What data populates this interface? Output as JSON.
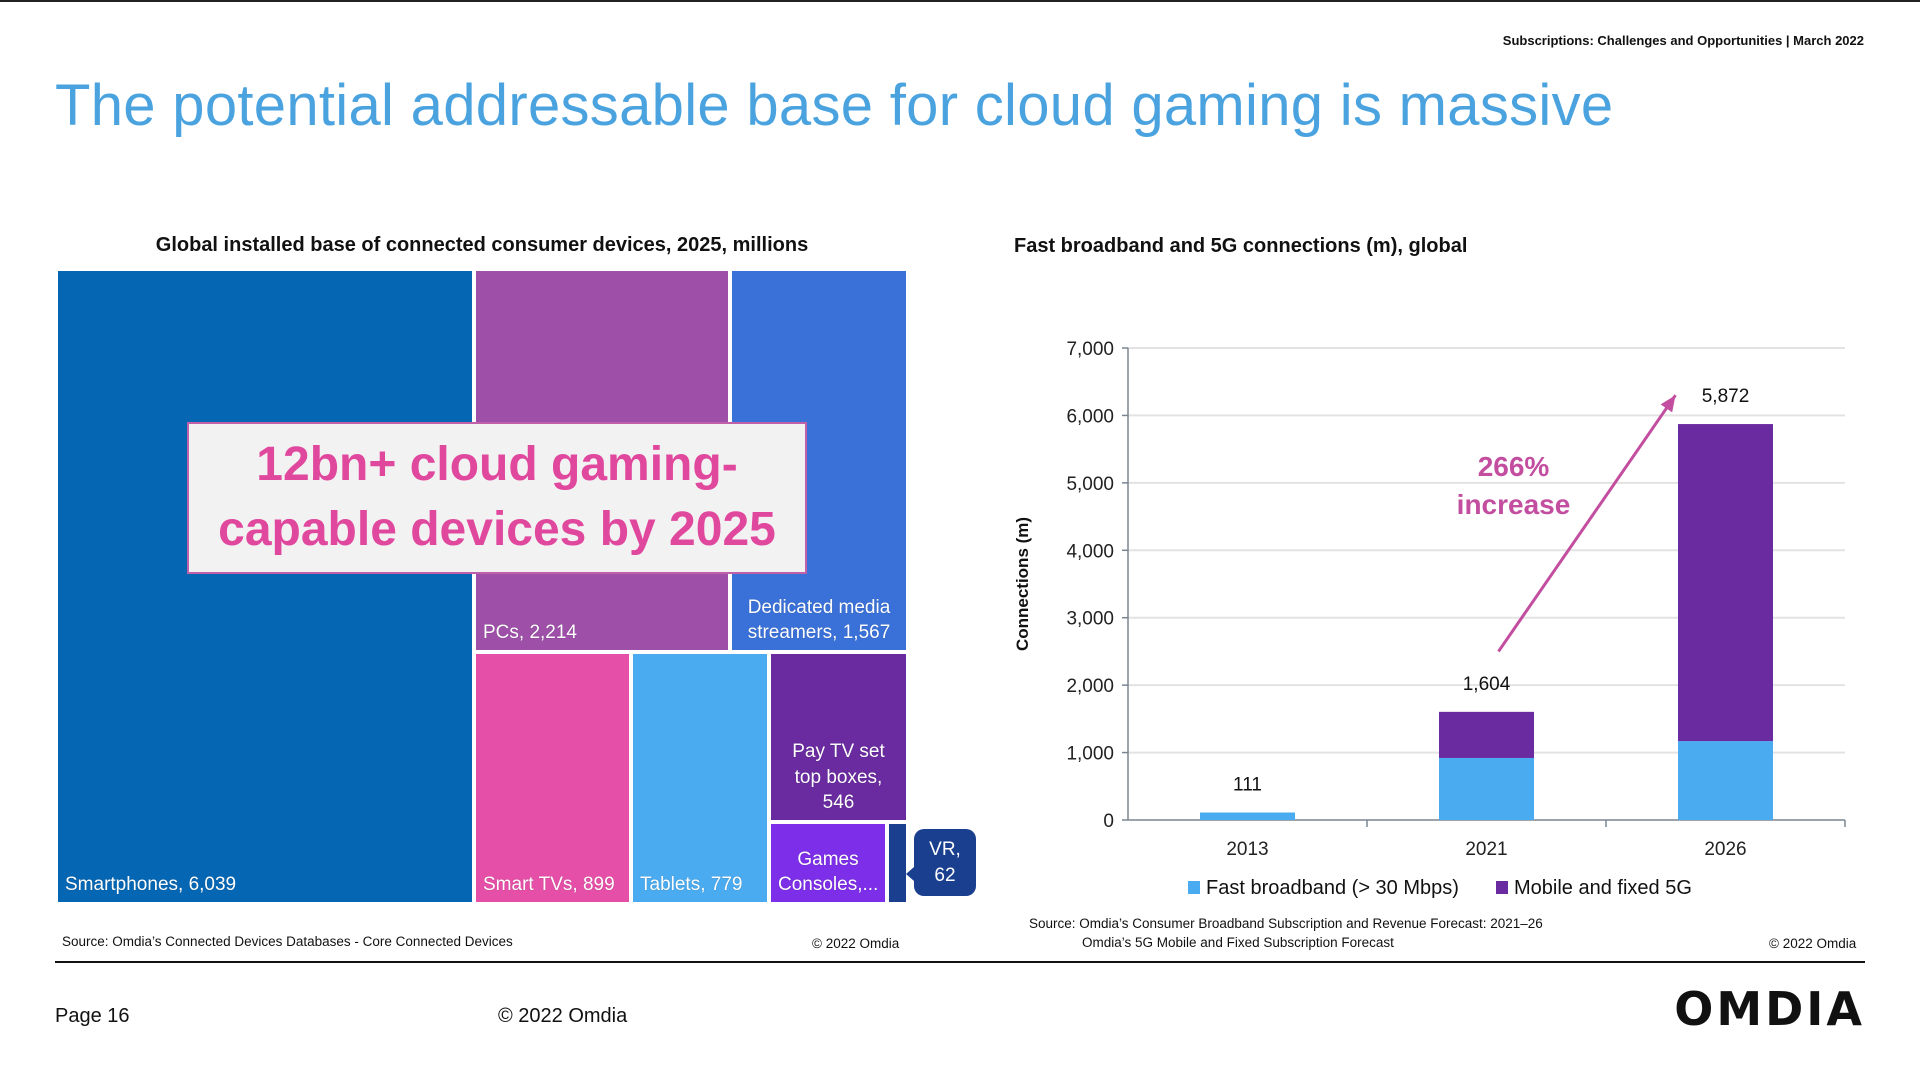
{
  "header": {
    "report": "Subscriptions: Challenges and Opportunities | March 2022",
    "title": "The potential addressable base for cloud gaming is massive"
  },
  "footer": {
    "page": "Page 16",
    "copyright": "© 2022 Omdia",
    "logo": "OMDIA"
  },
  "highlight": {
    "line1": "12bn+ cloud gaming-",
    "line2": "capable devices by 2025"
  },
  "colors": {
    "title": "#4aa3df",
    "smartphones": "#0567b4",
    "pcs": "#9e4fa8",
    "streamers": "#3a71d8",
    "smart_tvs": "#e64fa7",
    "tablets": "#4aabf0",
    "pay_tv": "#6a2aa0",
    "consoles": "#7d2ee8",
    "vr": "#1a3f8f",
    "fast_broadband": "#4aabf0",
    "mobile_5g": "#6a2aa0",
    "annotation": "#c34ea0"
  },
  "chart_data": [
    {
      "type": "treemap",
      "title": "Global installed base of connected consumer devices, 2025, millions",
      "items": [
        {
          "name": "Smartphones",
          "value": 6039,
          "label": "Smartphones,  6,039"
        },
        {
          "name": "PCs",
          "value": 2214,
          "label": "PCs,  2,214"
        },
        {
          "name": "Dedicated media streamers",
          "value": 1567,
          "label": "Dedicated media streamers,  1,567"
        },
        {
          "name": "Smart TVs",
          "value": 899,
          "label": "Smart TVs,  899"
        },
        {
          "name": "Tablets",
          "value": 779,
          "label": "Tablets,  779"
        },
        {
          "name": "Pay TV set top boxes",
          "value": 546,
          "label": "Pay TV set top boxes,  546"
        },
        {
          "name": "Games Consoles",
          "value": null,
          "label": "Games Consoles,..."
        },
        {
          "name": "VR",
          "value": 62,
          "label": "VR, 62"
        }
      ],
      "source": "Source: Omdia’s Connected Devices Databases - Core Connected Devices",
      "copyright": "© 2022 Omdia"
    },
    {
      "type": "bar",
      "stacked": true,
      "title": "Fast broadband and 5G connections (m), global",
      "categories": [
        "2013",
        "2021",
        "2026"
      ],
      "series": [
        {
          "name": "Fast broadband (> 30 Mbps)",
          "values": [
            111,
            920,
            1170
          ]
        },
        {
          "name": "Mobile and fixed 5G",
          "values": [
            0,
            684,
            4702
          ]
        }
      ],
      "totals": [
        111,
        1604,
        5872
      ],
      "total_labels": [
        "111",
        "1,604",
        "5,872"
      ],
      "xlabel": "",
      "ylabel": "Connections (m)",
      "ylim": [
        0,
        7000
      ],
      "yticks": [
        0,
        1000,
        2000,
        3000,
        4000,
        5000,
        6000,
        7000
      ],
      "ytick_labels": [
        "0",
        "1,000",
        "2,000",
        "3,000",
        "4,000",
        "5,000",
        "6,000",
        "7,000"
      ],
      "grid": true,
      "legend": "bottom",
      "annotation": {
        "line1": "266%",
        "line2": "increase",
        "from": "2021",
        "to": "2026"
      },
      "source_line1": "Source: Omdia’s Consumer Broadband Subscription and Revenue Forecast: 2021–26",
      "source_line2": "Omdia’s 5G Mobile and Fixed Subscription Forecast",
      "copyright": "© 2022 Omdia"
    }
  ]
}
